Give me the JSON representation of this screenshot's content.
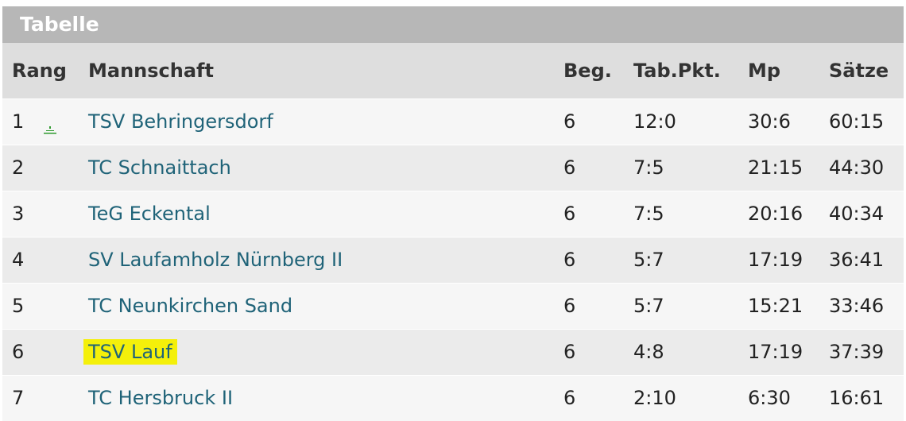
{
  "title": "Tabelle",
  "columns": {
    "rank": "Rang",
    "team": "Mannschaft",
    "played": "Beg.",
    "points": "Tab.Pkt.",
    "match_points": "Mp",
    "sets": "Sätze"
  },
  "rows": [
    {
      "rank": "1",
      "trend": "promotion-icon",
      "team": "TSV Behringersdorf",
      "played": "6",
      "points": "12:0",
      "match_points": "30:6",
      "sets": "60:15"
    },
    {
      "rank": "2",
      "team": "TC Schnaittach",
      "played": "6",
      "points": "7:5",
      "match_points": "21:15",
      "sets": "44:30"
    },
    {
      "rank": "3",
      "team": "TeG Eckental",
      "played": "6",
      "points": "7:5",
      "match_points": "20:16",
      "sets": "40:34"
    },
    {
      "rank": "4",
      "team": "SV Laufamholz Nürnberg II",
      "played": "6",
      "points": "5:7",
      "match_points": "17:19",
      "sets": "36:41"
    },
    {
      "rank": "5",
      "team": "TC Neunkirchen Sand",
      "played": "6",
      "points": "5:7",
      "match_points": "15:21",
      "sets": "33:46"
    },
    {
      "rank": "6",
      "team": "TSV Lauf",
      "highlighted": true,
      "played": "6",
      "points": "4:8",
      "match_points": "17:19",
      "sets": "37:39"
    },
    {
      "rank": "7",
      "team": "TC Hersbruck II",
      "played": "6",
      "points": "2:10",
      "match_points": "6:30",
      "sets": "16:61"
    }
  ],
  "colors": {
    "title_bar": "#b7b7b7",
    "header_row": "#dedede",
    "link": "#1f6378",
    "highlight": "#f4f00a",
    "trend_icon": "#2e9a2e"
  }
}
